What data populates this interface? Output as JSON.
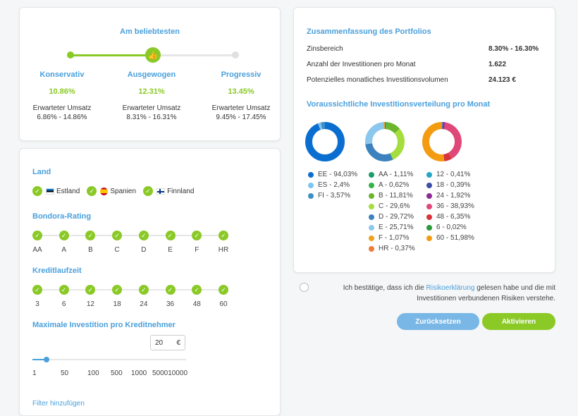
{
  "strategy": {
    "title": "Am beliebtesten",
    "options": [
      {
        "name": "Konservativ",
        "pct": "10.86%",
        "label": "Erwarteter Umsatz",
        "range": "6.86% - 14.86%"
      },
      {
        "name": "Ausgewogen",
        "pct": "12.31%",
        "label": "Erwarteter Umsatz",
        "range": "8.31% - 16.31%"
      },
      {
        "name": "Progressiv",
        "pct": "13.45%",
        "label": "Erwarteter Umsatz",
        "range": "9.45% - 17.45%"
      }
    ],
    "selected_index": 1
  },
  "filters": {
    "land_title": "Land",
    "countries": [
      "Estland",
      "Spanien",
      "Finnland"
    ],
    "rating_title": "Bondora-Rating",
    "ratings": [
      "AA",
      "A",
      "B",
      "C",
      "D",
      "E",
      "F",
      "HR"
    ],
    "term_title": "Kreditlaufzeit",
    "terms": [
      "3",
      "6",
      "12",
      "18",
      "24",
      "36",
      "48",
      "60"
    ],
    "investment_title": "Maximale Investition pro Kreditnehmer",
    "investment_value": "20",
    "currency": "€",
    "range_labels": [
      "1",
      "50",
      "100",
      "500",
      "1000",
      "500010000"
    ],
    "add_filter": "Filter hinzufügen"
  },
  "summary": {
    "title": "Zusammenfassung des Portfolios",
    "rows": [
      {
        "label": "Zinsbereich",
        "value": "8.30% - 16.30%"
      },
      {
        "label": "Anzahl der Investitionen pro Monat",
        "value": "1.622"
      },
      {
        "label": "Potenzielles monatliches Investitionsvolumen",
        "value": "24.123 €"
      }
    ],
    "dist_title": "Voraussichtliche Investitionsverteilung pro Monat"
  },
  "chart_data": [
    {
      "type": "pie",
      "categories": [
        "EE",
        "ES",
        "FI"
      ],
      "values": [
        94.03,
        2.4,
        3.57
      ],
      "labels": [
        "EE - 94,03%",
        "ES - 2,4%",
        "FI - 3,57%"
      ],
      "colors": [
        "#0a6ed1",
        "#7ec4ef",
        "#3d8fc5"
      ]
    },
    {
      "type": "pie",
      "categories": [
        "AA",
        "A",
        "B",
        "C",
        "D",
        "E",
        "F",
        "HR"
      ],
      "values": [
        1.11,
        0.62,
        11.81,
        29.6,
        29.72,
        25.71,
        1.07,
        0.37
      ],
      "labels": [
        "AA - 1,11%",
        "A - 0,62%",
        "B - 11,81%",
        "C - 29,6%",
        "D - 29,72%",
        "E - 25,71%",
        "F - 1,07%",
        "HR - 0,37%"
      ],
      "colors": [
        "#1a9e6c",
        "#35b24a",
        "#6cb52d",
        "#a5dd3c",
        "#3d82be",
        "#8cc8ee",
        "#f0a21e",
        "#ef7a3a"
      ]
    },
    {
      "type": "pie",
      "categories": [
        "12",
        "18",
        "24",
        "36",
        "48",
        "6",
        "60"
      ],
      "values": [
        0.41,
        0.39,
        1.92,
        38.93,
        6.35,
        0.02,
        51.98
      ],
      "labels": [
        "12 - 0,41%",
        "18 - 0,39%",
        "24 - 1,92%",
        "36 - 38,93%",
        "48 - 6,35%",
        "6 - 0,02%",
        "60 - 51,98%"
      ],
      "colors": [
        "#23a7c4",
        "#3b4fa8",
        "#8e2a96",
        "#e0487a",
        "#d8343a",
        "#2a9a3a",
        "#f39c12"
      ]
    }
  ],
  "confirm": {
    "before": "Ich bestätige, dass ich die ",
    "link": "Risikoerklärung",
    "after": " gelesen habe und die mit Investitionen verbundenen Risiken verstehe."
  },
  "buttons": {
    "reset": "Zurücksetzen",
    "activate": "Aktivieren"
  }
}
